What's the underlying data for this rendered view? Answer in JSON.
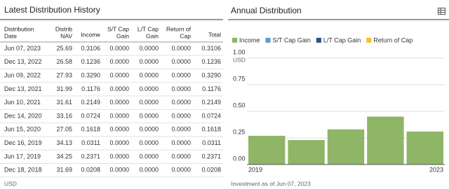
{
  "table": {
    "title": "Latest Distribution History",
    "header": [
      [
        "Distribution",
        "Date"
      ],
      [
        "Distrib",
        "NAV"
      ],
      [
        "Income"
      ],
      [
        "S/T Cap",
        "Gain"
      ],
      [
        "L/T Cap",
        "Gain"
      ],
      [
        "Return of",
        "Cap"
      ],
      [
        "Total"
      ]
    ],
    "rows": [
      [
        "Jun 07, 2023",
        "25.69",
        "0.3106",
        "0.0000",
        "0.0000",
        "0.0000",
        "0.3106"
      ],
      [
        "Dec 13, 2022",
        "26.58",
        "0.1236",
        "0.0000",
        "0.0000",
        "0.0000",
        "0.1236"
      ],
      [
        "Jun 09, 2022",
        "27.93",
        "0.3290",
        "0.0000",
        "0.0000",
        "0.0000",
        "0.3290"
      ],
      [
        "Dec 13, 2021",
        "31.99",
        "0.1176",
        "0.0000",
        "0.0000",
        "0.0000",
        "0.1176"
      ],
      [
        "Jun 10, 2021",
        "31.61",
        "0.2149",
        "0.0000",
        "0.0000",
        "0.0000",
        "0.2149"
      ],
      [
        "Dec 14, 2020",
        "33.16",
        "0.0724",
        "0.0000",
        "0.0000",
        "0.0000",
        "0.0724"
      ],
      [
        "Jun 15, 2020",
        "27.05",
        "0.1618",
        "0.0000",
        "0.0000",
        "0.0000",
        "0.1618"
      ],
      [
        "Dec 16, 2019",
        "34.13",
        "0.0311",
        "0.0000",
        "0.0000",
        "0.0000",
        "0.0311"
      ],
      [
        "Jun 17, 2019",
        "34.25",
        "0.2371",
        "0.0000",
        "0.0000",
        "0.0000",
        "0.2371"
      ],
      [
        "Dec 18, 2018",
        "31.69",
        "0.0208",
        "0.0000",
        "0.0000",
        "0.0000",
        "0.0208"
      ]
    ],
    "currency": "USD"
  },
  "chart_data": {
    "type": "bar",
    "stacked": true,
    "title": "Annual Distribution",
    "categories": [
      "2019",
      null,
      null,
      null,
      "2023"
    ],
    "series": [
      {
        "name": "Income",
        "color": "#8fb567",
        "values": [
          0.27,
          0.23,
          0.33,
          0.45,
          0.31
        ]
      },
      {
        "name": "S/T Cap Gain",
        "color": "#5b9bd5",
        "values": [
          0,
          0,
          0,
          0,
          0
        ]
      },
      {
        "name": "L/T Cap Gain",
        "color": "#2f4e8c",
        "values": [
          0,
          0,
          0,
          0,
          0
        ]
      },
      {
        "name": "Return of Cap",
        "color": "#f2c12e",
        "values": [
          0,
          0,
          0,
          0,
          0
        ]
      }
    ],
    "ylim": [
      0,
      1
    ],
    "yticks": [
      {
        "value": 0,
        "label": "0.00"
      },
      {
        "value": 0.25,
        "label": "0.25"
      },
      {
        "value": 0.5,
        "label": "0.50"
      },
      {
        "value": 0.75,
        "label": "0.75"
      },
      {
        "value": 1,
        "label": "1.00"
      }
    ],
    "y_unit": "USD",
    "grid": true,
    "footnote": "Investment as of Jun 07, 2023"
  }
}
